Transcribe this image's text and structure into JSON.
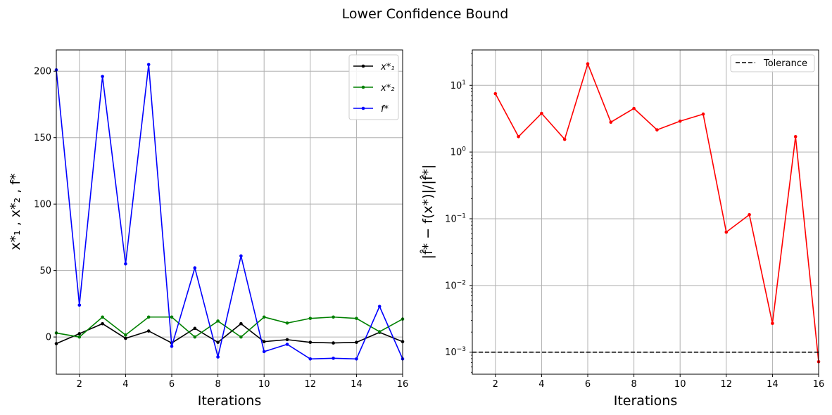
{
  "figure": {
    "title": "Lower Confidence Bound"
  },
  "chart_data": [
    {
      "type": "line",
      "xlabel": "Iterations",
      "ylabel": "x*₁ , x*₂ , f*",
      "xlim": [
        1,
        16
      ],
      "ylim": [
        -28,
        216
      ],
      "xticks": [
        2,
        4,
        6,
        8,
        10,
        12,
        14,
        16
      ],
      "yticks": [
        0,
        50,
        100,
        150,
        200
      ],
      "grid": true,
      "legend_position": "top-right",
      "x": [
        1,
        2,
        3,
        4,
        5,
        6,
        7,
        8,
        9,
        10,
        11,
        12,
        13,
        14,
        15,
        16
      ],
      "series": [
        {
          "name": "x*₁",
          "color": "#000000",
          "values": [
            -5,
            2.5,
            10,
            -1,
            4.5,
            -4.5,
            6.5,
            -4,
            10,
            -3.5,
            -2,
            -4,
            -4.5,
            -4,
            3.5,
            -3.5
          ]
        },
        {
          "name": "x*₂",
          "color": "#008000",
          "values": [
            3,
            0,
            15,
            1.5,
            15,
            15,
            0,
            12,
            0,
            15,
            10.5,
            14,
            15,
            14,
            4,
            13.5
          ]
        },
        {
          "name": "f*",
          "color": "#0000ff",
          "values": [
            201,
            24,
            196,
            55,
            205,
            -7,
            52,
            -15,
            61,
            -11,
            -5.5,
            -16.5,
            -16,
            -16.5,
            23,
            -16.5
          ]
        }
      ]
    },
    {
      "type": "line",
      "xlabel": "Iterations",
      "ylabel": "|f̂* − f(x*)|/|f̂*|",
      "xlim": [
        1,
        16
      ],
      "ylim_log10": [
        -3.33,
        1.53
      ],
      "yscale": "log",
      "xticks": [
        2,
        4,
        6,
        8,
        10,
        12,
        14,
        16
      ],
      "yticks": [
        {
          "value": 0.001,
          "base": "10",
          "exp": "−3"
        },
        {
          "value": 0.01,
          "base": "10",
          "exp": "−2"
        },
        {
          "value": 0.1,
          "base": "10",
          "exp": "−1"
        },
        {
          "value": 1,
          "base": "10",
          "exp": "0"
        },
        {
          "value": 10,
          "base": "10",
          "exp": "1"
        }
      ],
      "grid": true,
      "legend_position": "top-right",
      "x": [
        2,
        3,
        4,
        5,
        6,
        7,
        8,
        9,
        10,
        11,
        12,
        13,
        14,
        15,
        16
      ],
      "series": [
        {
          "color": "#ff0000",
          "values": [
            7.5,
            1.7,
            3.8,
            1.55,
            21,
            2.8,
            4.5,
            2.15,
            2.9,
            3.7,
            0.063,
            0.115,
            0.0027,
            1.7,
            0.00072
          ]
        }
      ],
      "hline": {
        "name": "Tolerance",
        "value": 0.001,
        "color": "#000000",
        "style": "dashed"
      }
    }
  ]
}
